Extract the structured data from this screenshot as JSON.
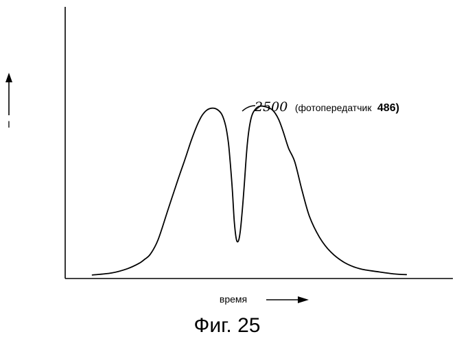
{
  "chart_data": {
    "type": "line",
    "xlabel": "время",
    "ylabel": "I",
    "xlim": [
      0,
      100
    ],
    "ylim": [
      0,
      100
    ],
    "grid": false,
    "legend": "none",
    "series": [
      {
        "x": [
          7,
          12,
          16,
          19,
          20.5,
          22,
          24,
          26.5,
          29,
          30.6,
          31.6,
          32.5,
          33.4,
          34.3,
          35.3,
          36.5,
          37.8,
          39.1,
          40.4,
          41.4,
          42.1,
          42.6,
          43.1,
          43.6,
          44.1,
          44.6,
          45.1,
          45.6,
          46.2,
          47,
          48,
          49.3,
          50.6,
          52,
          53.2,
          54.2,
          55.1,
          56.2,
          57.6,
          59.2,
          61,
          63,
          65.6,
          68.5,
          72,
          76,
          81,
          85,
          88
        ],
        "y": [
          1,
          2,
          4,
          6.5,
          8.5,
          11,
          18,
          32,
          46,
          54.5,
          60,
          65,
          69.5,
          73.5,
          77,
          79.5,
          80.5,
          80,
          77.5,
          72,
          64,
          54,
          42,
          27,
          18.5,
          17,
          21,
          30,
          44,
          64,
          76,
          80.5,
          81.5,
          81,
          80,
          78,
          75,
          69.5,
          61.5,
          55,
          42,
          29,
          19,
          12,
          7,
          4,
          2.5,
          1.5,
          1.2
        ]
      }
    ],
    "annotations": [
      {
        "number": "2500",
        "text": "(фотопередатчик",
        "id": "486)"
      }
    ]
  },
  "caption": "Фиг. 25"
}
